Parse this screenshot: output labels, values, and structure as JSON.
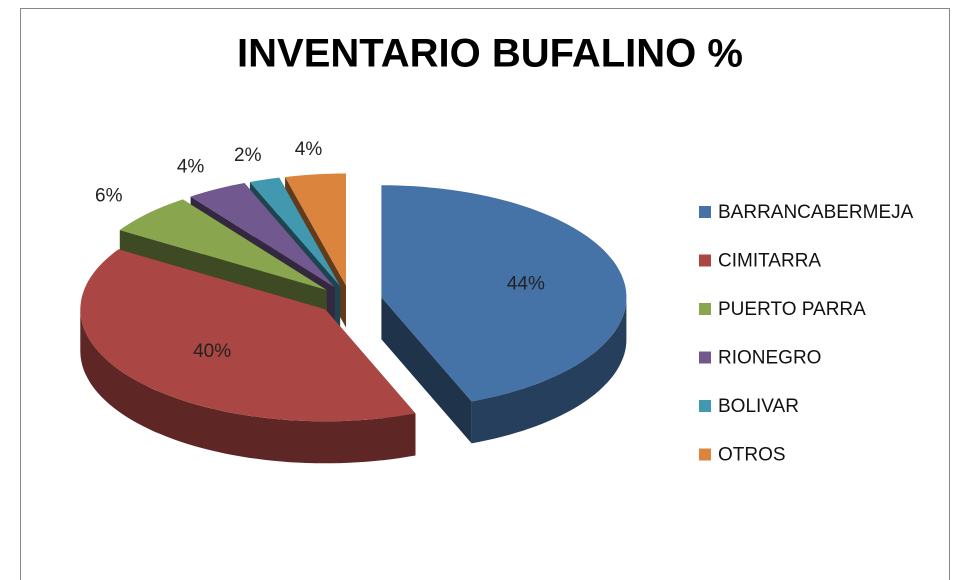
{
  "chart_data": {
    "type": "pie",
    "title": "INVENTARIO BUFALINO %",
    "categories": [
      "BARRANCABERMEJA",
      "CIMITARRA",
      "PUERTO PARRA",
      "RIONEGRO",
      "BOLIVAR",
      "OTROS"
    ],
    "values": [
      44,
      40,
      6,
      4,
      2,
      4
    ],
    "value_labels": [
      "44%",
      "40%",
      "6%",
      "4%",
      "2%",
      "4%"
    ],
    "colors": [
      "#4572a7",
      "#aa4643",
      "#89a54e",
      "#71588f",
      "#4198af",
      "#db843d"
    ],
    "legend": "right"
  }
}
